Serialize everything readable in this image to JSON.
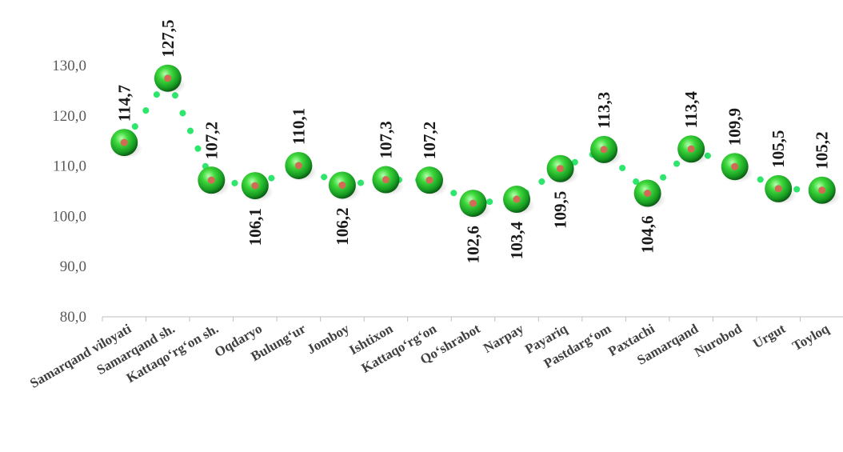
{
  "chart_data": {
    "type": "line",
    "categories": [
      "Samarqand viloyati",
      "Samarqand sh.",
      "Kattaqo‘rg‘on sh.",
      "Oqdaryo",
      "Bulung‘ur",
      "Jomboy",
      "Ishtixon",
      "Kattaqo‘rg‘on",
      "Qo‘shrabot",
      "Narpay",
      "Payariq",
      "Pastdarg‘om",
      "Paxtachi",
      "Samarqand",
      "Nurobod",
      "Urgut",
      "Toyloq"
    ],
    "series": [
      {
        "values": [
          114.7,
          127.5,
          107.2,
          106.1,
          110.1,
          106.2,
          107.3,
          107.2,
          102.6,
          103.4,
          109.5,
          113.3,
          104.6,
          113.4,
          109.9,
          105.5,
          105.2
        ],
        "labels": [
          "114,7",
          "127,5",
          "107,2",
          "106,1",
          "110,1",
          "106,2",
          "107,3",
          "107,2",
          "102,6",
          "103,4",
          "109,5",
          "113,3",
          "104,6",
          "113,4",
          "109,9",
          "105,5",
          "105,2"
        ]
      }
    ],
    "yticks": [
      "80,0",
      "90,0",
      "100,0",
      "110,0",
      "120,0",
      "130,0"
    ],
    "ylim": [
      80,
      130
    ],
    "line_style": "dotted",
    "colors": {
      "line": "#2ee66b",
      "marker": "#1fbf2e",
      "marker_center": "#d26a55",
      "axis": "#bfbfbf"
    },
    "title": "",
    "xlabel": "",
    "ylabel": "",
    "grid": false,
    "legend": "none"
  }
}
